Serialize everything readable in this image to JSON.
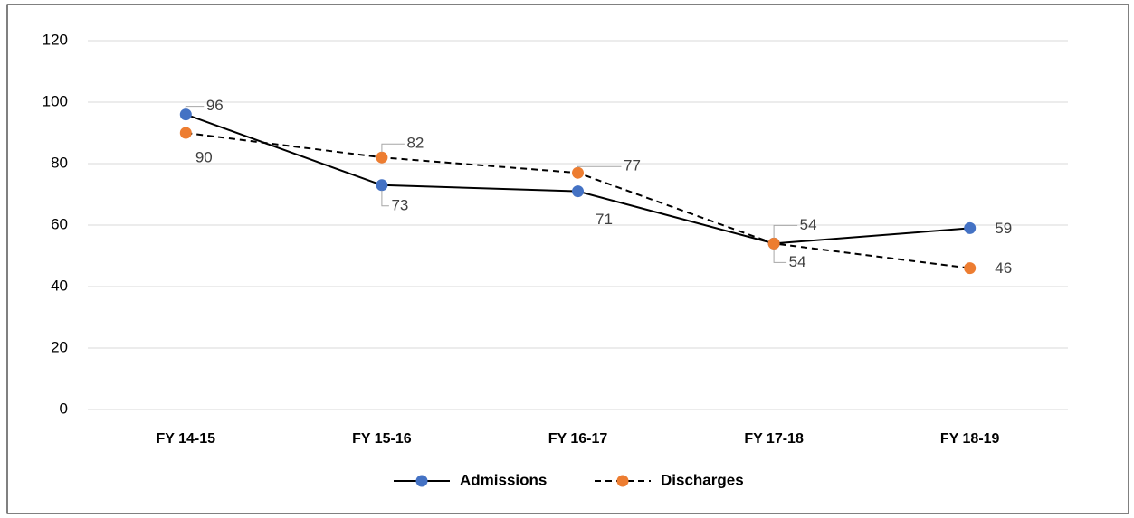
{
  "chart_data": {
    "type": "line",
    "categories": [
      "FY 14-15",
      "FY 15-16",
      "FY 16-17",
      "FY 17-18",
      "FY 18-19"
    ],
    "series": [
      {
        "name": "Admissions",
        "color": "#4472c4",
        "line_color": "#000000",
        "dashed": false,
        "values": [
          96,
          73,
          71,
          54,
          59
        ]
      },
      {
        "name": "Discharges",
        "color": "#ed7d31",
        "line_color": "#000000",
        "dashed": true,
        "values": [
          90,
          82,
          77,
          54,
          46
        ]
      }
    ],
    "ylim": [
      0,
      120
    ],
    "yticks": [
      0,
      20,
      40,
      60,
      80,
      100,
      120
    ],
    "grid": true,
    "legend": "bottom"
  }
}
